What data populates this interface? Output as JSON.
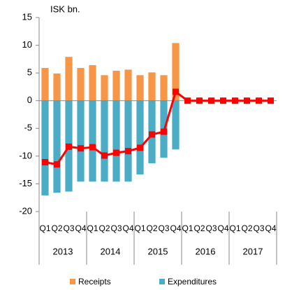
{
  "chart_data": {
    "type": "bar",
    "unit_label": "ISK bn.",
    "categories": [
      "Q1",
      "Q2",
      "Q3",
      "Q4",
      "Q1",
      "Q2",
      "Q3",
      "Q4",
      "Q1",
      "Q2",
      "Q3",
      "Q4",
      "Q1",
      "Q2",
      "Q3",
      "Q4",
      "Q1",
      "Q2",
      "Q3",
      "Q4"
    ],
    "year_groups": [
      "2013",
      "2014",
      "2015",
      "2016",
      "2017"
    ],
    "series": [
      {
        "name": "Receipts",
        "color": "#f79646",
        "type": "bar",
        "values": [
          5.9,
          4.9,
          7.9,
          5.9,
          6.4,
          4.6,
          5.4,
          5.6,
          4.6,
          5.1,
          4.6,
          10.4,
          null,
          null,
          null,
          null,
          null,
          null,
          null,
          null
        ]
      },
      {
        "name": "Expenditures",
        "color": "#4bacc6",
        "type": "bar",
        "values": [
          -17.1,
          -16.6,
          -16.4,
          -14.6,
          -14.6,
          -14.6,
          -14.6,
          -14.6,
          -13.3,
          -11.3,
          -10.3,
          -8.8,
          null,
          null,
          null,
          null,
          null,
          null,
          null,
          null
        ]
      },
      {
        "color": "#ff0000",
        "type": "line",
        "values": [
          -11.1,
          -11.5,
          -8.3,
          -8.6,
          -8.4,
          -9.9,
          -9.4,
          -9.1,
          -8.5,
          -6.1,
          -5.6,
          1.6,
          0,
          0,
          0,
          0,
          0,
          0,
          0,
          0
        ]
      }
    ],
    "ylim": [
      -20,
      15
    ],
    "yticks": [
      -20,
      -15,
      -10,
      -5,
      0,
      5,
      10,
      15
    ],
    "grid": false
  }
}
